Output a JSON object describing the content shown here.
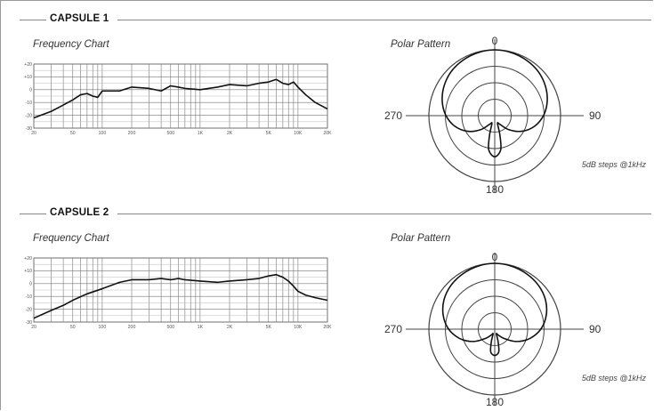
{
  "sections": [
    {
      "title": "CAPSULE 1",
      "freq_title": "Frequency Chart",
      "polar_title": "Polar Pattern",
      "polar_labels": {
        "top": "0",
        "left": "270",
        "right": "90",
        "bottom": "180"
      },
      "steps_note": "5dB steps @1kHz"
    },
    {
      "title": "CAPSULE 2",
      "freq_title": "Frequency Chart",
      "polar_title": "Polar Pattern",
      "polar_labels": {
        "top": "0",
        "left": "270",
        "right": "90",
        "bottom": "180"
      },
      "steps_note": "5dB steps @1kHz"
    }
  ],
  "chart_data": [
    {
      "type": "line",
      "title": "Frequency Chart",
      "x_scale": "log",
      "xlim": [
        20,
        20000
      ],
      "ylim": [
        -30,
        20
      ],
      "x_ticks": [
        "20",
        "50",
        "100",
        "200",
        "500",
        "1K",
        "2K",
        "5K",
        "10K",
        "20K"
      ],
      "y_ticks": [
        "+20",
        "+10",
        "0",
        "-10",
        "-20",
        "-30"
      ],
      "grid": true,
      "x": [
        20,
        30,
        40,
        50,
        60,
        70,
        80,
        90,
        100,
        150,
        200,
        300,
        400,
        500,
        600,
        700,
        1000,
        1500,
        2000,
        3000,
        4000,
        5000,
        6000,
        7000,
        8000,
        9000,
        10000,
        12000,
        15000,
        20000
      ],
      "y": [
        -22,
        -17,
        -12,
        -8,
        -4,
        -3,
        -5,
        -6,
        -1,
        -1,
        2,
        1,
        -1,
        3,
        2,
        1,
        0,
        2,
        4,
        3,
        5,
        6,
        8,
        5,
        4,
        6,
        2,
        -4,
        -10,
        -15
      ]
    },
    {
      "type": "line",
      "title": "Frequency Chart",
      "x_scale": "log",
      "xlim": [
        20,
        20000
      ],
      "ylim": [
        -30,
        20
      ],
      "x_ticks": [
        "20",
        "50",
        "100",
        "200",
        "500",
        "1K",
        "2K",
        "5K",
        "10K",
        "20K"
      ],
      "y_ticks": [
        "+20",
        "+10",
        "0",
        "-10",
        "-20",
        "-30"
      ],
      "grid": true,
      "x": [
        20,
        30,
        40,
        50,
        70,
        100,
        150,
        200,
        300,
        400,
        500,
        600,
        700,
        1000,
        1500,
        2000,
        3000,
        4000,
        5000,
        6000,
        7000,
        8000,
        9000,
        10000,
        12000,
        15000,
        20000
      ],
      "y": [
        -27,
        -21,
        -17,
        -13,
        -8,
        -4,
        1,
        3,
        3,
        4,
        3,
        4,
        3,
        2,
        1,
        2,
        3,
        4,
        6,
        7,
        5,
        2,
        -2,
        -6,
        -9,
        -11,
        -13
      ]
    }
  ],
  "polar_data": [
    {
      "type": "polar",
      "step_db": 5,
      "rings": 4,
      "angles_deg": [
        0,
        15,
        30,
        45,
        60,
        75,
        90,
        105,
        120,
        135,
        150,
        160,
        165,
        170,
        180,
        190,
        195,
        200,
        210,
        225,
        240,
        255,
        270,
        285,
        300,
        315,
        330,
        345
      ],
      "level_db": [
        0,
        -0.2,
        -0.6,
        -1.2,
        -2.2,
        -3.5,
        -5.2,
        -7.5,
        -10.5,
        -14,
        -17,
        -17.5,
        -14,
        -9.5,
        -7.5,
        -9.5,
        -14,
        -17.5,
        -17,
        -14,
        -10.5,
        -7.5,
        -5.2,
        -3.5,
        -2.2,
        -1.2,
        -0.6,
        -0.2
      ]
    },
    {
      "type": "polar",
      "step_db": 5,
      "rings": 4,
      "angles_deg": [
        0,
        15,
        30,
        45,
        60,
        75,
        90,
        105,
        120,
        135,
        150,
        160,
        165,
        170,
        180,
        190,
        195,
        200,
        210,
        225,
        240,
        255,
        270,
        285,
        300,
        315,
        330,
        345
      ],
      "level_db": [
        0,
        -0.2,
        -0.6,
        -1.2,
        -2.2,
        -3.8,
        -6,
        -9,
        -12.5,
        -16,
        -18,
        -18.5,
        -16,
        -13,
        -12,
        -13,
        -16,
        -18.5,
        -18,
        -16,
        -12.5,
        -9,
        -6,
        -3.8,
        -2.2,
        -1.2,
        -0.6,
        -0.2
      ]
    }
  ]
}
